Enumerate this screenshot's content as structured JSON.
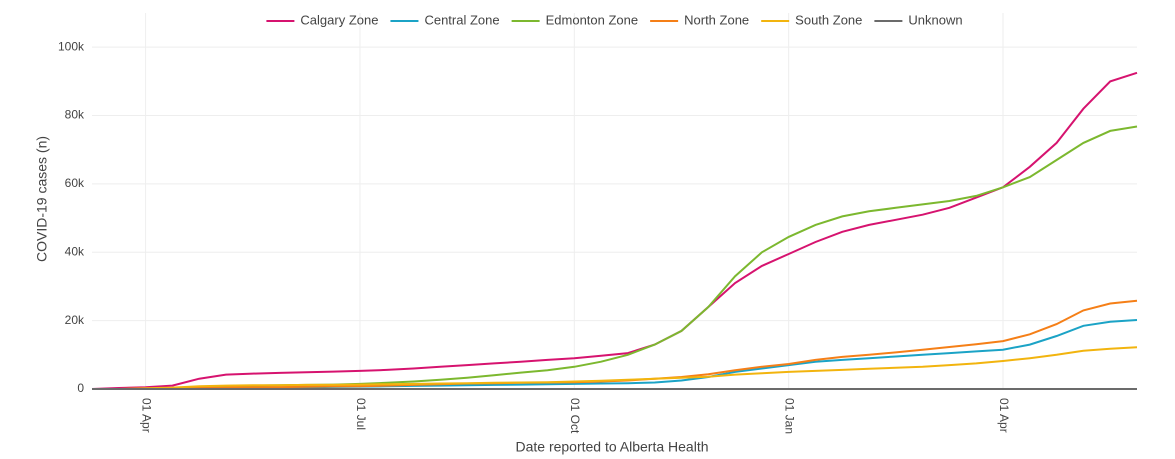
{
  "chart_data": {
    "type": "line",
    "x_label": "Date reported to Alberta Health",
    "y_label": "COVID-19 cases (n)",
    "categories": [
      null,
      null,
      "01 Apr",
      null,
      null,
      null,
      null,
      null,
      null,
      null,
      "01 Jul",
      null,
      null,
      null,
      null,
      null,
      null,
      null,
      "01 Oct",
      null,
      null,
      null,
      null,
      null,
      null,
      null,
      "01 Jan",
      null,
      null,
      null,
      null,
      null,
      null,
      null,
      "01 Apr",
      null,
      null,
      null,
      null,
      null
    ],
    "ylim": [
      0,
      110000
    ],
    "yticks": [
      0,
      {
        "value": 20000,
        "label": "20k"
      },
      {
        "value": 40000,
        "label": "40k"
      },
      {
        "value": 60000,
        "label": "60k"
      },
      {
        "value": 80000,
        "label": "80k"
      },
      {
        "value": 100000,
        "label": "100k"
      }
    ],
    "grid": true,
    "legend": "top",
    "series": [
      {
        "name": "Calgary Zone",
        "color": "#d6136f",
        "values": [
          0,
          300,
          500,
          1000,
          3000,
          4200,
          4500,
          4700,
          4900,
          5100,
          5300,
          5600,
          6000,
          6500,
          7000,
          7500,
          8000,
          8500,
          9000,
          9700,
          10500,
          13000,
          17000,
          24000,
          31000,
          36000,
          39500,
          43000,
          46000,
          48000,
          49500,
          51000,
          53000,
          56000,
          59000,
          65000,
          72000,
          82000,
          90000,
          92500
        ]
      },
      {
        "name": "Central Zone",
        "color": "#1ba3c6",
        "values": [
          0,
          0,
          0,
          100,
          200,
          250,
          300,
          400,
          500,
          600,
          700,
          800,
          900,
          1000,
          1100,
          1200,
          1300,
          1400,
          1500,
          1600,
          1700,
          1900,
          2500,
          3500,
          5000,
          6000,
          7000,
          8000,
          8500,
          9000,
          9500,
          10000,
          10500,
          11000,
          11500,
          13000,
          15500,
          18500,
          19700,
          20200
        ]
      },
      {
        "name": "Edmonton Zone",
        "color": "#7cb82f",
        "values": [
          0,
          0,
          0,
          200,
          500,
          800,
          1000,
          1100,
          1200,
          1300,
          1500,
          1800,
          2200,
          2700,
          3300,
          4000,
          4800,
          5500,
          6500,
          8000,
          10000,
          13000,
          17000,
          24000,
          33000,
          40000,
          44500,
          48000,
          50500,
          52000,
          53000,
          54000,
          55000,
          56500,
          59000,
          62000,
          67000,
          72000,
          75500,
          76800
        ]
      },
      {
        "name": "North Zone",
        "color": "#f57f17",
        "values": [
          0,
          0,
          0,
          200,
          300,
          400,
          500,
          550,
          650,
          750,
          800,
          1000,
          1200,
          1400,
          1600,
          1700,
          1800,
          1900,
          2000,
          2200,
          2500,
          3000,
          3500,
          4300,
          5500,
          6500,
          7300,
          8500,
          9400,
          10000,
          10700,
          11500,
          12300,
          13100,
          14000,
          16000,
          19000,
          23000,
          25000,
          25800
        ]
      },
      {
        "name": "South Zone",
        "color": "#f2b40e",
        "values": [
          0,
          0,
          200,
          400,
          800,
          1000,
          1100,
          1100,
          1200,
          1200,
          1300,
          1400,
          1500,
          1600,
          1700,
          1800,
          1900,
          2000,
          2200,
          2400,
          2700,
          3000,
          3300,
          3600,
          4200,
          4600,
          5000,
          5300,
          5600,
          5900,
          6200,
          6500,
          7000,
          7500,
          8200,
          9000,
          10000,
          11200,
          11800,
          12200
        ]
      },
      {
        "name": "Unknown",
        "color": "#6b6b6b",
        "values": [
          0,
          0,
          0,
          0,
          0,
          0,
          0,
          0,
          0,
          0,
          0,
          0,
          0,
          0,
          0,
          0,
          0,
          0,
          0,
          0,
          0,
          0,
          0,
          0,
          0,
          0,
          0,
          0,
          0,
          0,
          0,
          0,
          0,
          0,
          0,
          0,
          0,
          0,
          0,
          0
        ]
      }
    ]
  }
}
